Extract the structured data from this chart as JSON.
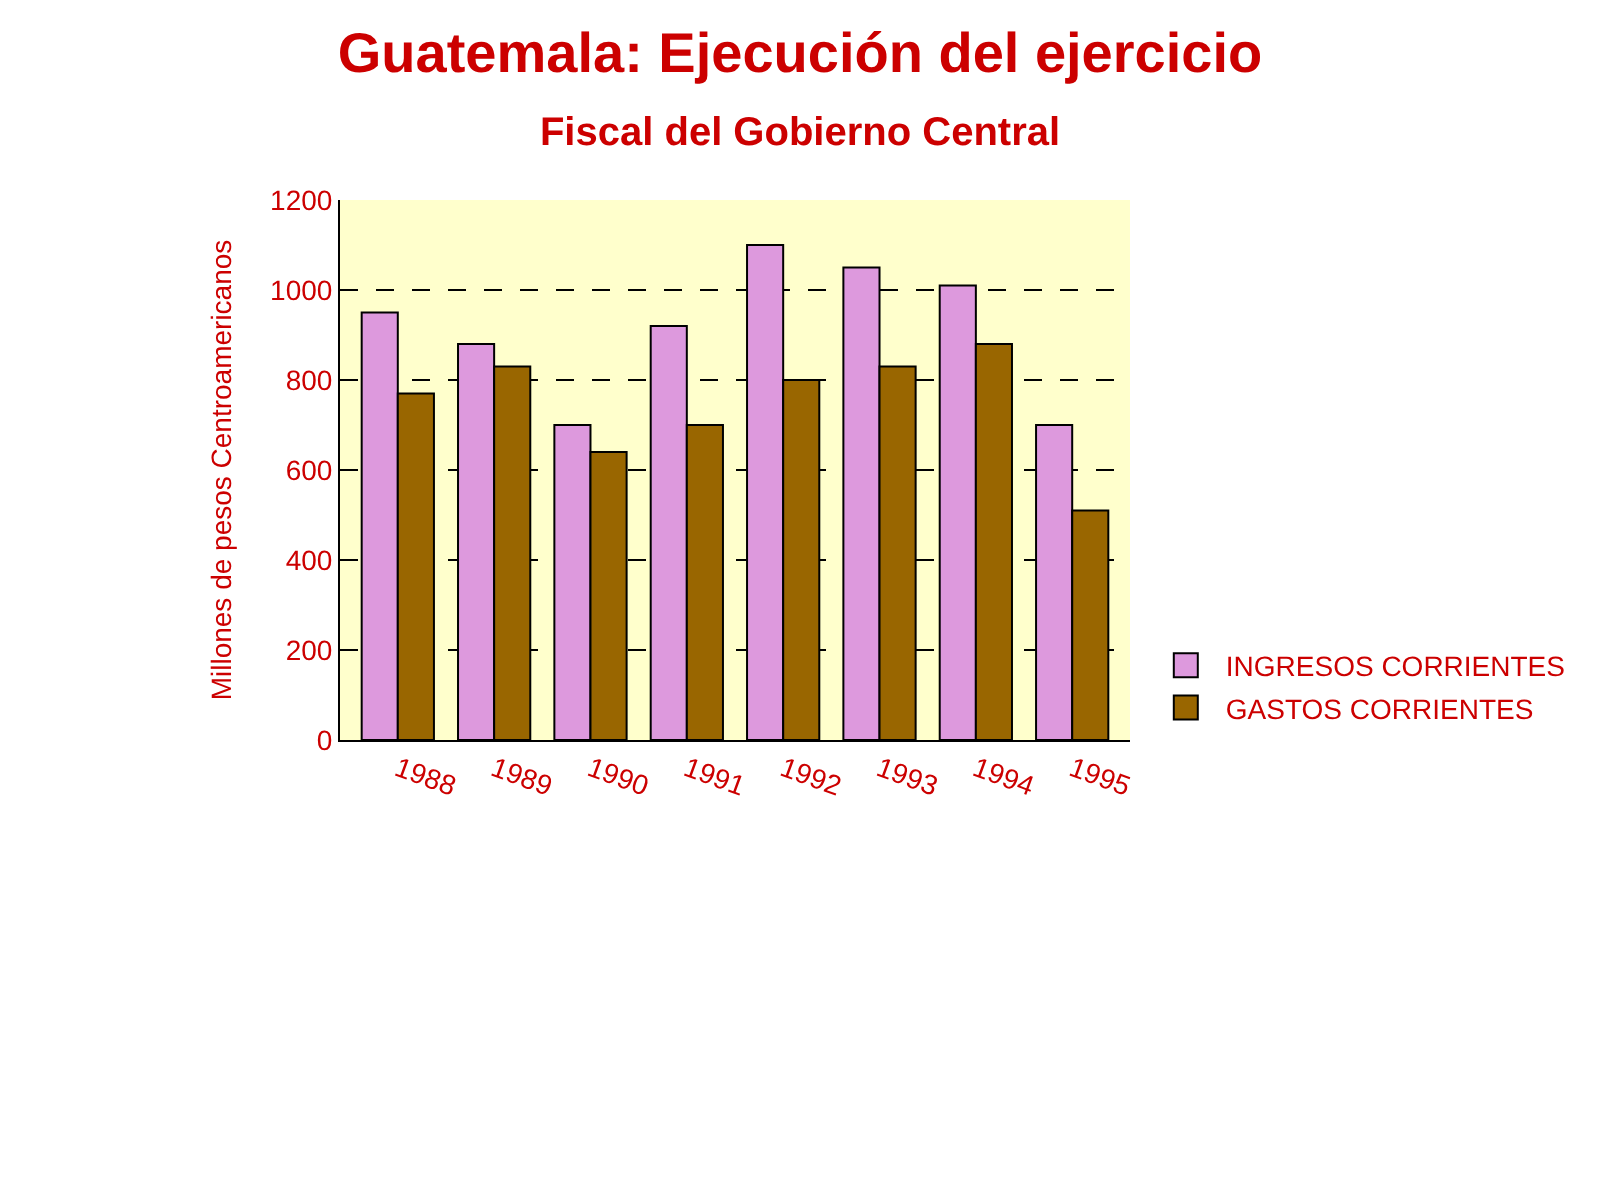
{
  "chart_data": {
    "type": "bar",
    "title": "Guatemala: Ejecución del ejercicio",
    "subtitle": "Fiscal del Gobierno Central",
    "ylabel": "Millones de pesos Centroamericanos",
    "categories": [
      "1988",
      "1989",
      "1990",
      "1991",
      "1992",
      "1993",
      "1994",
      "1995"
    ],
    "series": [
      {
        "name": "INGRESOS CORRIENTES",
        "color": "#dd99dd",
        "values": [
          950,
          880,
          700,
          920,
          1100,
          1050,
          1010,
          700
        ]
      },
      {
        "name": "GASTOS CORRIENTES",
        "color": "#996600",
        "values": [
          770,
          830,
          640,
          700,
          800,
          830,
          880,
          510
        ]
      }
    ],
    "ylim": [
      0,
      1200
    ],
    "yticks": [
      0,
      200,
      400,
      600,
      800,
      1000,
      1200
    ],
    "grid": "y",
    "legend": "bottom right"
  }
}
